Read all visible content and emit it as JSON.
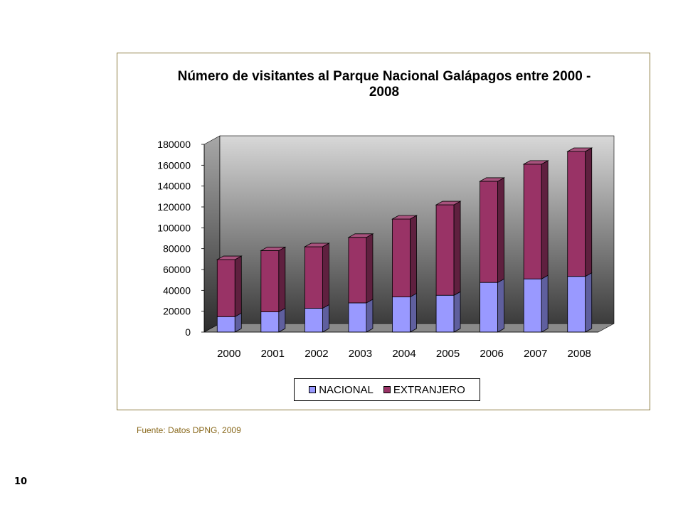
{
  "chart_data": {
    "type": "bar",
    "stacked": true,
    "style": "3d",
    "title": "Número de visitantes al Parque Nacional Galápagos entre 2000 - 2008",
    "categories": [
      "2000",
      "2001",
      "2002",
      "2003",
      "2004",
      "2005",
      "2006",
      "2007",
      "2008"
    ],
    "series": [
      {
        "name": "NACIONAL",
        "color": "#9999ff",
        "values": [
          14800,
          19400,
          22800,
          28000,
          33700,
          35300,
          47600,
          51000,
          53400
        ]
      },
      {
        "name": "EXTRANJERO",
        "color": "#993366",
        "values": [
          54700,
          58700,
          59000,
          62800,
          74700,
          86700,
          97000,
          110000,
          119800
        ]
      }
    ],
    "yticks": [
      "0",
      "20000",
      "40000",
      "60000",
      "80000",
      "100000",
      "120000",
      "140000",
      "160000",
      "180000"
    ],
    "ylim": [
      0,
      180000
    ],
    "grid": false,
    "legend_position": "bottom",
    "xlabel": "",
    "ylabel": ""
  },
  "source_note": "Fuente: Datos DPNG, 2009",
  "page_number": "10"
}
